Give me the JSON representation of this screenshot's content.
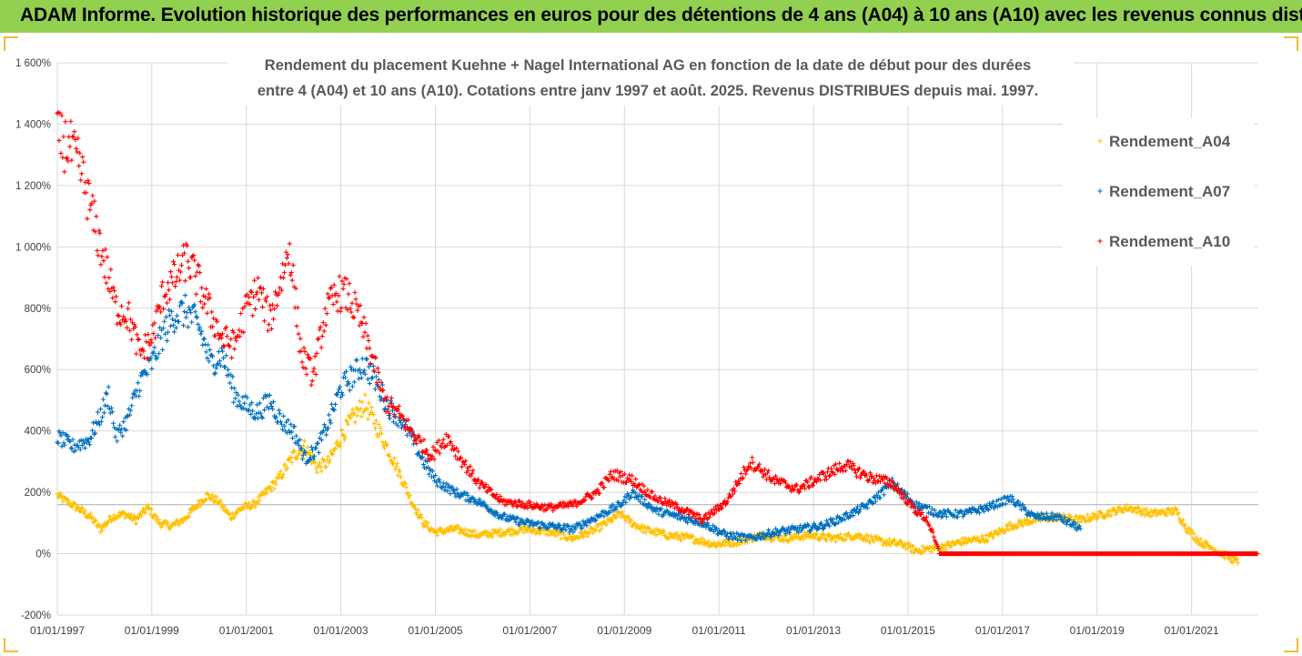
{
  "banner": {
    "title": "ADAM Informe. Evolution historique des performances en euros pour des détentions de 4 ans (A04) à 10 ans (A10) avec les revenus connus distribués"
  },
  "colors": {
    "banner_bg": "#92d050",
    "a04": "#ffc000",
    "a07": "#0070c0",
    "a10": "#ff0000",
    "grid": "#d9d9d9",
    "highlight_line": "#bfbfbf"
  },
  "chart_data": {
    "type": "scatter",
    "title_lines": [
      "Rendement du placement Kuehne + Nagel International AG en fonction de la date de début pour des durées",
      "entre 4 (A04) et 10 ans (A10). Cotations entre janv 1997 et août. 2025. Revenus DISTRIBUES depuis mai. 1997."
    ],
    "xlabel": "",
    "ylabel": "",
    "x_range": [
      "1997-01-01",
      "2022-06-01"
    ],
    "x_ticks": [
      "01/01/1997",
      "01/01/1999",
      "01/01/2001",
      "01/01/2003",
      "01/01/2005",
      "01/01/2007",
      "01/01/2009",
      "01/01/2011",
      "01/01/2013",
      "01/01/2015",
      "01/01/2017",
      "01/01/2019",
      "01/01/2021"
    ],
    "y_range": [
      -200,
      1600
    ],
    "y_ticks": [
      -200,
      0,
      200,
      400,
      600,
      800,
      1000,
      1200,
      1400,
      1600
    ],
    "y_tick_labels": [
      "-200%",
      "0%",
      "200%",
      "400%",
      "600%",
      "800%",
      "1 000%",
      "1 200%",
      "1 400%",
      "1 600%"
    ],
    "highlight_y": 160,
    "grid": true,
    "legend_position": "right",
    "series": [
      {
        "name": "Rendement_A04",
        "color": "#ffc000",
        "points": [
          [
            "1997-01-01",
            190
          ],
          [
            "1997-06-01",
            150
          ],
          [
            "1997-09-15",
            120
          ],
          [
            "1997-12-01",
            80
          ],
          [
            "1998-03-01",
            120
          ],
          [
            "1998-06-01",
            130
          ],
          [
            "1998-09-01",
            110
          ],
          [
            "1998-12-01",
            150
          ],
          [
            "1999-03-01",
            100
          ],
          [
            "1999-06-01",
            90
          ],
          [
            "1999-09-01",
            110
          ],
          [
            "1999-12-01",
            150
          ],
          [
            "2000-03-01",
            190
          ],
          [
            "2000-06-01",
            170
          ],
          [
            "2000-09-01",
            120
          ],
          [
            "2000-12-01",
            150
          ],
          [
            "2001-03-01",
            160
          ],
          [
            "2001-06-01",
            200
          ],
          [
            "2001-09-01",
            240
          ],
          [
            "2002-01-01",
            320
          ],
          [
            "2002-04-01",
            350
          ],
          [
            "2002-07-01",
            280
          ],
          [
            "2002-10-01",
            300
          ],
          [
            "2003-01-01",
            380
          ],
          [
            "2003-04-01",
            440
          ],
          [
            "2003-07-01",
            490
          ],
          [
            "2003-10-01",
            420
          ],
          [
            "2004-01-01",
            340
          ],
          [
            "2004-04-01",
            260
          ],
          [
            "2004-07-01",
            170
          ],
          [
            "2004-10-01",
            100
          ],
          [
            "2005-01-01",
            70
          ],
          [
            "2005-06-01",
            80
          ],
          [
            "2005-12-01",
            60
          ],
          [
            "2006-06-01",
            70
          ],
          [
            "2006-12-01",
            80
          ],
          [
            "2007-06-01",
            70
          ],
          [
            "2007-12-01",
            50
          ],
          [
            "2008-06-01",
            80
          ],
          [
            "2008-12-01",
            130
          ],
          [
            "2009-03-01",
            100
          ],
          [
            "2009-06-01",
            80
          ],
          [
            "2009-12-01",
            60
          ],
          [
            "2010-06-01",
            50
          ],
          [
            "2010-12-01",
            30
          ],
          [
            "2011-06-01",
            40
          ],
          [
            "2011-12-01",
            60
          ],
          [
            "2012-06-01",
            50
          ],
          [
            "2012-12-01",
            60
          ],
          [
            "2013-06-01",
            50
          ],
          [
            "2013-12-01",
            60
          ],
          [
            "2014-06-01",
            40
          ],
          [
            "2014-12-01",
            30
          ],
          [
            "2015-03-01",
            10
          ],
          [
            "2015-09-01",
            20
          ],
          [
            "2016-03-01",
            40
          ],
          [
            "2016-09-01",
            50
          ],
          [
            "2017-03-01",
            90
          ],
          [
            "2017-09-01",
            110
          ],
          [
            "2018-03-01",
            120
          ],
          [
            "2018-09-01",
            110
          ],
          [
            "2019-03-01",
            130
          ],
          [
            "2019-09-01",
            150
          ],
          [
            "2020-03-01",
            130
          ],
          [
            "2020-09-01",
            140
          ],
          [
            "2020-12-01",
            80
          ],
          [
            "2021-03-01",
            40
          ],
          [
            "2021-09-01",
            0
          ],
          [
            "2022-01-01",
            -30
          ]
        ]
      },
      {
        "name": "Rendement_A07",
        "color": "#0070c0",
        "points": [
          [
            "1997-01-01",
            380
          ],
          [
            "1997-05-01",
            350
          ],
          [
            "1997-09-01",
            370
          ],
          [
            "1997-12-01",
            450
          ],
          [
            "1998-02-01",
            520
          ],
          [
            "1998-04-01",
            380
          ],
          [
            "1998-07-01",
            440
          ],
          [
            "1998-10-01",
            560
          ],
          [
            "1999-01-01",
            620
          ],
          [
            "1999-04-01",
            720
          ],
          [
            "1999-07-01",
            780
          ],
          [
            "1999-10-01",
            790
          ],
          [
            "2000-01-01",
            740
          ],
          [
            "2000-04-01",
            620
          ],
          [
            "2000-07-01",
            650
          ],
          [
            "2000-10-01",
            520
          ],
          [
            "2001-01-01",
            480
          ],
          [
            "2001-04-01",
            460
          ],
          [
            "2001-07-01",
            500
          ],
          [
            "2001-10-01",
            430
          ],
          [
            "2002-01-01",
            400
          ],
          [
            "2002-04-01",
            310
          ],
          [
            "2002-07-01",
            340
          ],
          [
            "2002-10-01",
            430
          ],
          [
            "2003-01-01",
            540
          ],
          [
            "2003-04-01",
            580
          ],
          [
            "2003-07-01",
            620
          ],
          [
            "2003-10-01",
            560
          ],
          [
            "2004-01-01",
            480
          ],
          [
            "2004-04-01",
            440
          ],
          [
            "2004-07-01",
            380
          ],
          [
            "2004-10-01",
            300
          ],
          [
            "2005-01-01",
            240
          ],
          [
            "2005-06-01",
            200
          ],
          [
            "2005-12-01",
            170
          ],
          [
            "2006-06-01",
            120
          ],
          [
            "2006-12-01",
            100
          ],
          [
            "2007-06-01",
            90
          ],
          [
            "2007-12-01",
            80
          ],
          [
            "2008-06-01",
            120
          ],
          [
            "2008-12-01",
            160
          ],
          [
            "2009-03-01",
            200
          ],
          [
            "2009-09-01",
            140
          ],
          [
            "2010-03-01",
            120
          ],
          [
            "2010-09-01",
            100
          ],
          [
            "2011-03-01",
            60
          ],
          [
            "2011-09-01",
            50
          ],
          [
            "2012-03-01",
            70
          ],
          [
            "2012-09-01",
            80
          ],
          [
            "2013-03-01",
            90
          ],
          [
            "2013-09-01",
            120
          ],
          [
            "2014-03-01",
            160
          ],
          [
            "2014-09-01",
            230
          ],
          [
            "2015-03-01",
            160
          ],
          [
            "2015-09-01",
            130
          ],
          [
            "2016-03-01",
            130
          ],
          [
            "2016-09-01",
            150
          ],
          [
            "2017-03-01",
            180
          ],
          [
            "2017-09-01",
            120
          ],
          [
            "2018-03-01",
            120
          ],
          [
            "2018-09-01",
            80
          ]
        ]
      },
      {
        "name": "Rendement_A10",
        "color": "#ff0000",
        "points": [
          [
            "1997-01-01",
            1350
          ],
          [
            "1997-04-01",
            1330
          ],
          [
            "1997-07-01",
            1250
          ],
          [
            "1997-10-01",
            1100
          ],
          [
            "1998-01-01",
            950
          ],
          [
            "1998-04-01",
            800
          ],
          [
            "1998-07-01",
            780
          ],
          [
            "1998-10-01",
            650
          ],
          [
            "1999-01-01",
            700
          ],
          [
            "1999-04-01",
            850
          ],
          [
            "1999-07-01",
            900
          ],
          [
            "1999-10-01",
            960
          ],
          [
            "2000-01-01",
            880
          ],
          [
            "2000-04-01",
            780
          ],
          [
            "2000-07-01",
            700
          ],
          [
            "2000-10-01",
            680
          ],
          [
            "2001-01-01",
            800
          ],
          [
            "2001-04-01",
            860
          ],
          [
            "2001-07-01",
            760
          ],
          [
            "2001-10-01",
            900
          ],
          [
            "2001-12-01",
            1000
          ],
          [
            "2002-03-01",
            650
          ],
          [
            "2002-06-01",
            580
          ],
          [
            "2002-09-01",
            780
          ],
          [
            "2002-12-01",
            850
          ],
          [
            "2003-03-01",
            840
          ],
          [
            "2003-06-01",
            760
          ],
          [
            "2003-09-01",
            640
          ],
          [
            "2003-12-01",
            500
          ],
          [
            "2004-04-01",
            450
          ],
          [
            "2004-08-01",
            380
          ],
          [
            "2004-12-01",
            320
          ],
          [
            "2005-04-01",
            380
          ],
          [
            "2005-08-01",
            300
          ],
          [
            "2005-12-01",
            230
          ],
          [
            "2006-06-01",
            170
          ],
          [
            "2006-12-01",
            160
          ],
          [
            "2007-06-01",
            150
          ],
          [
            "2007-12-01",
            160
          ],
          [
            "2008-06-01",
            200
          ],
          [
            "2008-10-01",
            260
          ],
          [
            "2009-03-01",
            240
          ],
          [
            "2009-09-01",
            180
          ],
          [
            "2010-03-01",
            150
          ],
          [
            "2010-09-01",
            110
          ],
          [
            "2011-03-01",
            170
          ],
          [
            "2011-09-01",
            300
          ],
          [
            "2012-03-01",
            240
          ],
          [
            "2012-09-01",
            210
          ],
          [
            "2013-03-01",
            250
          ],
          [
            "2013-09-01",
            290
          ],
          [
            "2014-03-01",
            250
          ],
          [
            "2014-09-01",
            230
          ],
          [
            "2015-03-01",
            140
          ],
          [
            "2015-06-01",
            110
          ],
          [
            "2015-09-01",
            0
          ],
          [
            "2016-06-01",
            0
          ],
          [
            "2017-06-01",
            0
          ],
          [
            "2018-06-01",
            0
          ],
          [
            "2019-06-01",
            0
          ],
          [
            "2020-06-01",
            0
          ],
          [
            "2021-06-01",
            0
          ],
          [
            "2022-06-01",
            0
          ]
        ]
      }
    ]
  }
}
